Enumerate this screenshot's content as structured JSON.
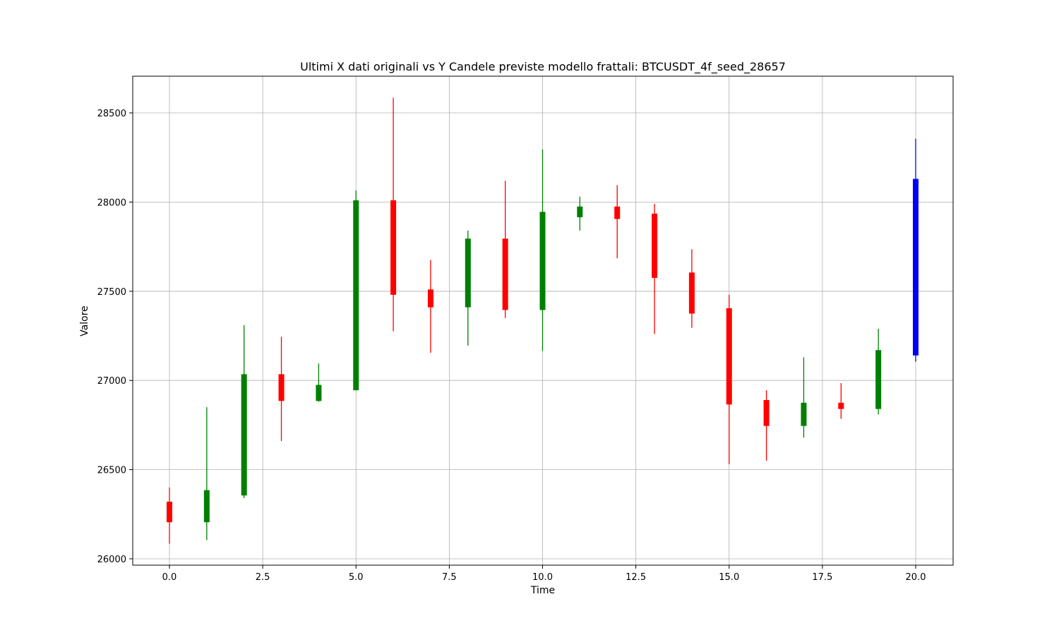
{
  "chart_data": {
    "type": "candlestick",
    "title": "Ultimi X dati originali vs Y Candele previste modello frattali: BTCUSDT_4f_seed_28657",
    "xlabel": "Time",
    "ylabel": "Valore",
    "xlim": [
      -1,
      21
    ],
    "ylim": [
      25965,
      26715
    ],
    "ylim_note": "",
    "x_ticks": [
      0.0,
      2.5,
      5.0,
      7.5,
      10.0,
      12.5,
      15.0,
      17.5,
      20.0
    ],
    "x_tick_labels": [
      "0.0",
      "2.5",
      "5.0",
      "7.5",
      "10.0",
      "12.5",
      "15.0",
      "17.5",
      "20.0"
    ],
    "y_ticks": [
      26000,
      26500,
      27000,
      27500,
      28000,
      28500
    ],
    "y_tick_labels": [
      "26000",
      "26500",
      "27000",
      "27500",
      "28000",
      "28500"
    ],
    "grid": true,
    "colors": {
      "up": "#008000",
      "down": "#ff0000",
      "predicted": "#0000ff"
    },
    "candles": [
      {
        "x": 0,
        "open": 26320,
        "high": 26400,
        "low": 26085,
        "close": 26205,
        "color": "down"
      },
      {
        "x": 1,
        "open": 26205,
        "high": 26850,
        "low": 26105,
        "close": 26385,
        "color": "up"
      },
      {
        "x": 2,
        "open": 26355,
        "high": 27310,
        "low": 26340,
        "close": 27035,
        "color": "up"
      },
      {
        "x": 3,
        "open": 27035,
        "high": 27245,
        "low": 26660,
        "close": 26885,
        "color": "down"
      },
      {
        "x": 4,
        "open": 26885,
        "high": 27095,
        "low": 26880,
        "close": 26975,
        "color": "up"
      },
      {
        "x": 5,
        "open": 26945,
        "high": 28065,
        "low": 26945,
        "close": 28010,
        "color": "up"
      },
      {
        "x": 6,
        "open": 28010,
        "high": 28585,
        "low": 27275,
        "close": 27480,
        "color": "down"
      },
      {
        "x": 7,
        "open": 27510,
        "high": 27675,
        "low": 27155,
        "close": 27410,
        "color": "down"
      },
      {
        "x": 8,
        "open": 27410,
        "high": 27840,
        "low": 27195,
        "close": 27795,
        "color": "up"
      },
      {
        "x": 9,
        "open": 27795,
        "high": 28120,
        "low": 27350,
        "close": 27395,
        "color": "down"
      },
      {
        "x": 10,
        "open": 27395,
        "high": 28295,
        "low": 27165,
        "close": 27945,
        "color": "up"
      },
      {
        "x": 11,
        "open": 27915,
        "high": 28030,
        "low": 27840,
        "close": 27975,
        "color": "up"
      },
      {
        "x": 12,
        "open": 27975,
        "high": 28095,
        "low": 27685,
        "close": 27905,
        "color": "down"
      },
      {
        "x": 13,
        "open": 27935,
        "high": 27990,
        "low": 27260,
        "close": 27575,
        "color": "down"
      },
      {
        "x": 14,
        "open": 27605,
        "high": 27735,
        "low": 27295,
        "close": 27375,
        "color": "down"
      },
      {
        "x": 15,
        "open": 27405,
        "high": 27480,
        "low": 26530,
        "close": 26865,
        "color": "down"
      },
      {
        "x": 16,
        "open": 26890,
        "high": 26945,
        "low": 26550,
        "close": 26745,
        "color": "down"
      },
      {
        "x": 17,
        "open": 26745,
        "high": 27130,
        "low": 26680,
        "close": 26875,
        "color": "up"
      },
      {
        "x": 18,
        "open": 26875,
        "high": 26985,
        "low": 26785,
        "close": 26840,
        "color": "down"
      },
      {
        "x": 19,
        "open": 26840,
        "high": 27290,
        "low": 26810,
        "close": 27170,
        "color": "up"
      },
      {
        "x": 20,
        "open": 27140,
        "high": 28355,
        "low": 27105,
        "close": 28130,
        "color": "predicted"
      }
    ]
  }
}
